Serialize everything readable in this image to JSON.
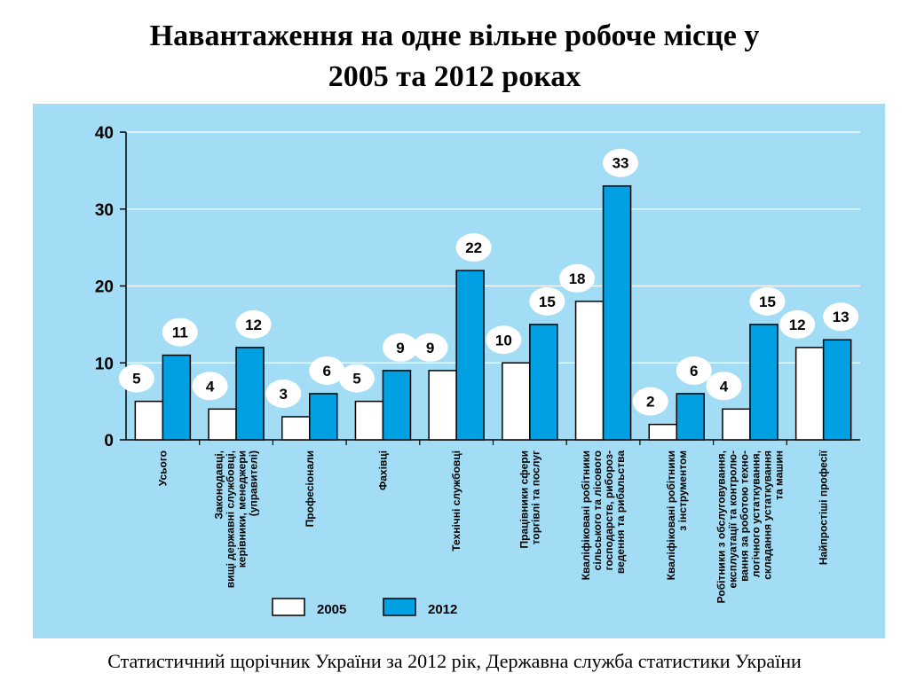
{
  "title": {
    "line1": "Навантаження на одне вільне робоче місце у",
    "line2": "2005 та 2012 роках"
  },
  "source": "Статистичний щорічник України за 2012 рік, Державна служба статистики України",
  "colors": {
    "background": "#a3dcf5",
    "series_2005": "#ffffff",
    "series_2012": "#00a0e2"
  },
  "chart_data": {
    "type": "bar",
    "title": "Навантаження на одне вільне робоче місце у 2005 та 2012 роках",
    "xlabel": "",
    "ylabel": "",
    "ylim": [
      0,
      40
    ],
    "yticks": [
      "0",
      "10",
      "20",
      "30",
      "40"
    ],
    "grid": true,
    "legend_position": "bottom",
    "categories": [
      [
        "Усього"
      ],
      [
        "Законодавці,",
        "вищі державні службовці,",
        "керівники, менеджери",
        "(управителі)"
      ],
      [
        "Професіонали"
      ],
      [
        "Фахівці"
      ],
      [
        "Технічні службовці"
      ],
      [
        "Працівники сфери",
        "торгівлі та послуг"
      ],
      [
        "Кваліфіковані робітники",
        "сільського та лісового",
        "господарств, риборoз-",
        "ведення та рибальства"
      ],
      [
        "Кваліфіковані робітники",
        "з інструментом"
      ],
      [
        "Робітники з обслуговування,",
        "експлуатації та контролю-",
        "вання за роботою техно-",
        "логічного устаткування,",
        "складання устаткування",
        "та машин"
      ],
      [
        "Найпростіші професії"
      ]
    ],
    "series": [
      {
        "name": "2005",
        "values": [
          5,
          4,
          3,
          5,
          9,
          10,
          18,
          2,
          4,
          12
        ],
        "labels": [
          "5",
          "4",
          "3",
          "5",
          "9",
          "10",
          "18",
          "2",
          "4",
          "12"
        ]
      },
      {
        "name": "2012",
        "values": [
          11,
          12,
          6,
          9,
          22,
          15,
          33,
          6,
          15,
          13
        ],
        "labels": [
          "11",
          "12",
          "6",
          "9",
          "22",
          "15",
          "33",
          "6",
          "15",
          "13"
        ]
      }
    ]
  }
}
